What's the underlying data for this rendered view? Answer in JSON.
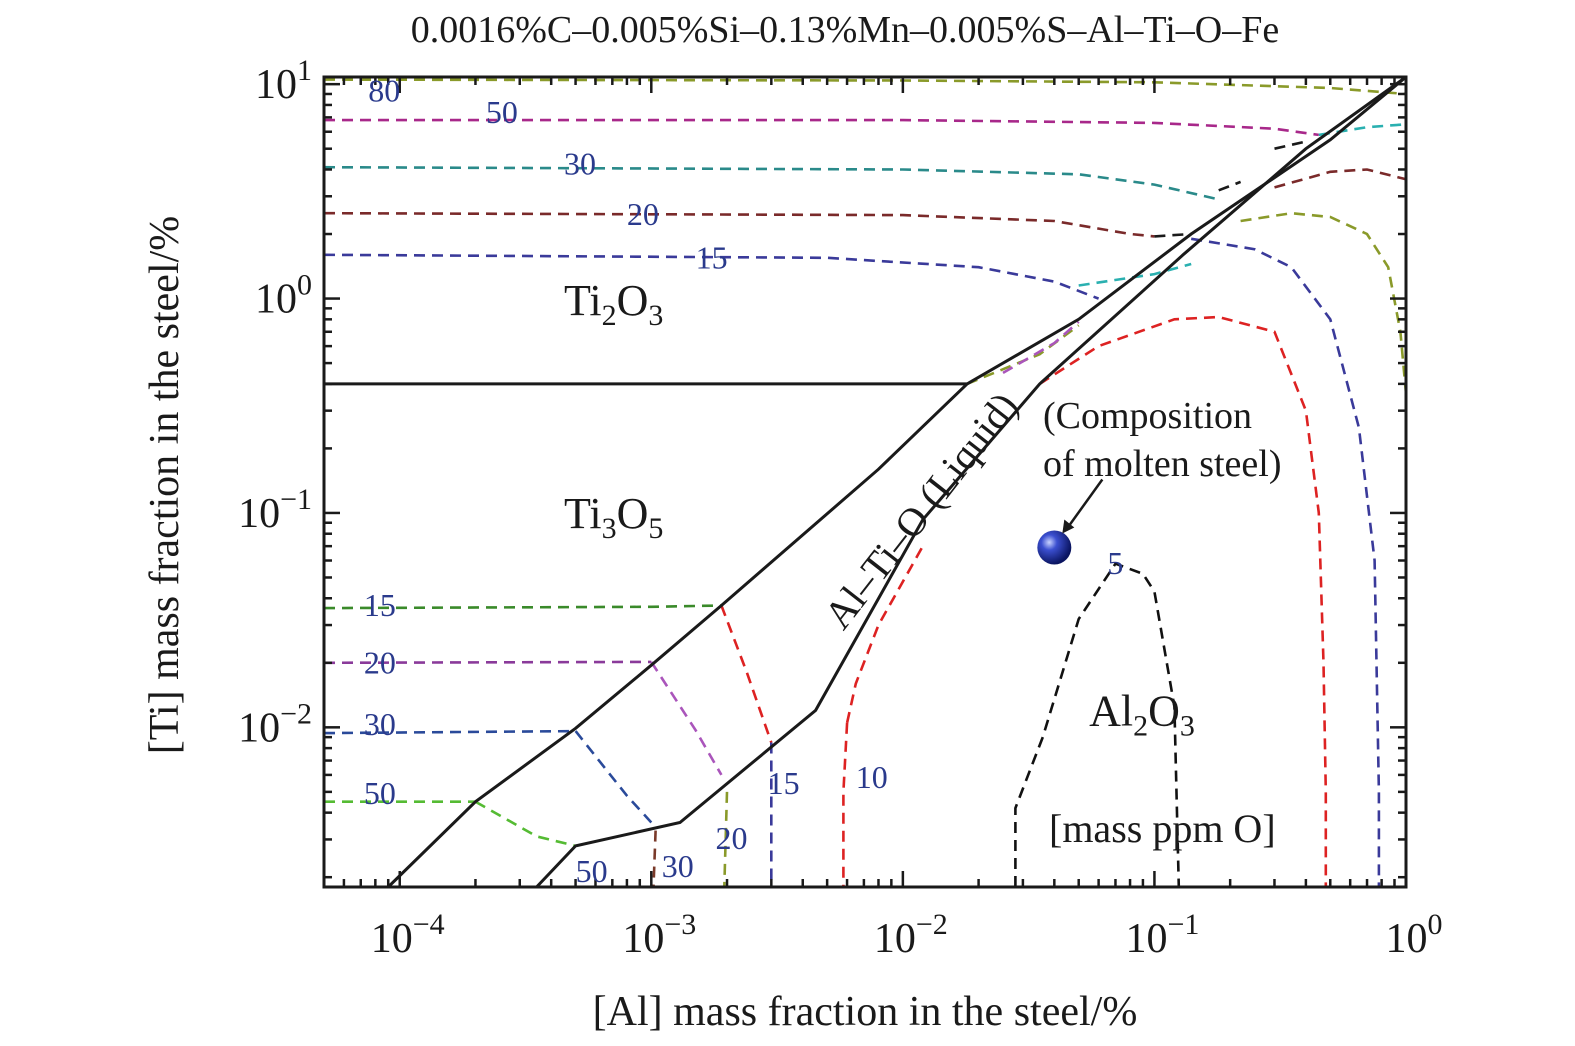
{
  "chart_data": {
    "type": "line",
    "title": "0.0016%C–0.005%Si–0.13%Mn–0.005%S–Al–Ti–O–Fe",
    "xlabel": "[Al] mass fraction in the steel/%",
    "ylabel": "[Ti] mass fraction in the steel/%",
    "xscale": "log",
    "yscale": "log",
    "xlim": [
      5e-05,
      1.0
    ],
    "ylim": [
      0.0018,
      10.8
    ],
    "x_ticks": [
      {
        "v": 0.0001,
        "base": "10",
        "exp": "−4"
      },
      {
        "v": 0.001,
        "base": "10",
        "exp": "−3"
      },
      {
        "v": 0.01,
        "base": "10",
        "exp": "−2"
      },
      {
        "v": 0.1,
        "base": "10",
        "exp": "−1"
      },
      {
        "v": 1.0,
        "base": "10",
        "exp": "0"
      }
    ],
    "y_ticks": [
      {
        "v": 0.01,
        "base": "10",
        "exp": "−2"
      },
      {
        "v": 0.1,
        "base": "10",
        "exp": "−1"
      },
      {
        "v": 1.0,
        "base": "10",
        "exp": "0"
      },
      {
        "v": 10.0,
        "base": "10",
        "exp": "1"
      }
    ],
    "phase_regions": [
      {
        "main": "Ti",
        "sub1": "2",
        "mid": "O",
        "sub2": "3",
        "x": 0.00045,
        "y": 0.84
      },
      {
        "main": "Ti",
        "sub1": "3",
        "mid": "O",
        "sub2": "5",
        "x": 0.00045,
        "y": 0.085
      },
      {
        "main": "Al",
        "sub1": "2",
        "mid": "O",
        "sub2": "3",
        "x": 0.055,
        "y": 0.0102
      }
    ],
    "liquid_label": "Al–Ti–O (Liquid)",
    "unit_label": "[mass ppm O]",
    "composition_point": {
      "x": 0.04,
      "y": 0.069,
      "color": "#2233aa"
    },
    "annotation": {
      "line1": "(Composition",
      "line2": "of molten steel)"
    },
    "phase_boundaries": [
      {
        "name": "liquid-upper",
        "points": [
          [
            9e-05,
            0.0018
          ],
          [
            0.0002,
            0.0045
          ],
          [
            0.0005,
            0.0099
          ],
          [
            0.001,
            0.0195
          ],
          [
            0.0019,
            0.037
          ],
          [
            0.008,
            0.16
          ],
          [
            0.018,
            0.4
          ],
          [
            0.05,
            0.8
          ],
          [
            0.14,
            2.0
          ],
          [
            0.5,
            5.5
          ],
          [
            1.0,
            10.8
          ]
        ]
      },
      {
        "name": "liquid-lower",
        "points": [
          [
            0.00035,
            0.0018
          ],
          [
            0.0005,
            0.0028
          ],
          [
            0.0013,
            0.0036
          ],
          [
            0.0045,
            0.012
          ],
          [
            0.012,
            0.093
          ],
          [
            0.035,
            0.4
          ],
          [
            0.13,
            1.6
          ],
          [
            0.4,
            5.0
          ],
          [
            1.0,
            10.8
          ]
        ]
      },
      {
        "name": "Ti2O3-Ti3O5",
        "points": [
          [
            5e-05,
            0.4
          ],
          [
            0.018,
            0.4
          ]
        ]
      }
    ],
    "series": [
      {
        "name": "80",
        "color": "#8a9a2a",
        "points": [
          [
            5e-05,
            10.5
          ],
          [
            0.01,
            10.4
          ],
          [
            0.1,
            10.2
          ],
          [
            0.5,
            9.6
          ],
          [
            1.0,
            9.0
          ]
        ]
      },
      {
        "name": "50",
        "color": "#a8288a",
        "points": [
          [
            5e-05,
            6.8
          ],
          [
            0.01,
            6.8
          ],
          [
            0.1,
            6.6
          ],
          [
            0.3,
            6.2
          ],
          [
            0.45,
            5.8
          ]
        ]
      },
      {
        "name": "30",
        "color": "#2a8a8a",
        "points": [
          [
            5e-05,
            4.1
          ],
          [
            0.01,
            4.0
          ],
          [
            0.05,
            3.8
          ],
          [
            0.1,
            3.4
          ],
          [
            0.18,
            2.9
          ]
        ]
      },
      {
        "name": "20",
        "color": "#7a2a2a",
        "points": [
          [
            5e-05,
            2.5
          ],
          [
            0.01,
            2.45
          ],
          [
            0.04,
            2.3
          ],
          [
            0.08,
            2.0
          ],
          [
            0.1,
            1.95
          ]
        ]
      },
      {
        "name": "15",
        "color": "#3a3a9a",
        "points": [
          [
            5e-05,
            1.6
          ],
          [
            0.005,
            1.55
          ],
          [
            0.02,
            1.4
          ],
          [
            0.04,
            1.2
          ],
          [
            0.06,
            1.0
          ]
        ]
      },
      {
        "name": "15",
        "color": "#3a8a2a",
        "points": [
          [
            5e-05,
            0.036
          ],
          [
            0.001,
            0.0365
          ],
          [
            0.0019,
            0.037
          ]
        ]
      },
      {
        "name": "15",
        "color": "#dd2222",
        "points": [
          [
            0.0019,
            0.037
          ],
          [
            0.0024,
            0.018
          ],
          [
            0.003,
            0.0085
          ]
        ]
      },
      {
        "name": "20",
        "color": "#8a3a9a",
        "points": [
          [
            5e-05,
            0.02
          ],
          [
            0.001,
            0.0202
          ]
        ]
      },
      {
        "name": "20",
        "color": "#aa55bb",
        "points": [
          [
            0.001,
            0.0202
          ],
          [
            0.0015,
            0.0097
          ],
          [
            0.0019,
            0.006
          ]
        ]
      },
      {
        "name": "30",
        "color": "#2a4a9a",
        "points": [
          [
            5e-05,
            0.0094
          ],
          [
            0.0005,
            0.0096
          ]
        ]
      },
      {
        "name": "30",
        "color": "#2a4a9a",
        "points": [
          [
            0.0005,
            0.0096
          ],
          [
            0.0008,
            0.0048
          ],
          [
            0.001,
            0.0036
          ]
        ]
      },
      {
        "name": "50",
        "color": "#55bb33",
        "points": [
          [
            5e-05,
            0.0045
          ],
          [
            0.0002,
            0.0045
          ]
        ]
      },
      {
        "name": "50",
        "color": "#55bb33",
        "points": [
          [
            0.0002,
            0.0045
          ],
          [
            0.00035,
            0.0031
          ],
          [
            0.0005,
            0.0028
          ]
        ]
      },
      {
        "name": "30",
        "color": "#7a3a2a",
        "points": [
          [
            0.00104,
            0.0033
          ],
          [
            0.00102,
            0.0018
          ]
        ]
      },
      {
        "name": "20",
        "color": "#8a9a2a",
        "points": [
          [
            0.002,
            0.005
          ],
          [
            0.00195,
            0.0018
          ]
        ]
      },
      {
        "name": "15",
        "color": "#3a3a9a",
        "points": [
          [
            0.003,
            0.0085
          ],
          [
            0.003,
            0.005
          ],
          [
            0.003,
            0.0018
          ]
        ]
      },
      {
        "name": "10",
        "color": "#dd2222",
        "points": [
          [
            0.006,
            0.0105
          ],
          [
            0.0065,
            0.016
          ],
          [
            0.008,
            0.03
          ],
          [
            0.012,
            0.07
          ]
        ]
      },
      {
        "name": "10",
        "color": "#dd2222",
        "points": [
          [
            0.006,
            0.0105
          ],
          [
            0.0058,
            0.005
          ],
          [
            0.0058,
            0.0018
          ]
        ]
      },
      {
        "name": "5",
        "color": "#111111",
        "points": [
          [
            0.028,
            0.0018
          ],
          [
            0.028,
            0.0042
          ],
          [
            0.036,
            0.009
          ],
          [
            0.05,
            0.032
          ],
          [
            0.07,
            0.058
          ],
          [
            0.09,
            0.052
          ],
          [
            0.1,
            0.043
          ],
          [
            0.12,
            0.0125
          ],
          [
            0.125,
            0.0018
          ]
        ]
      },
      {
        "name": "",
        "color": "#dd2222",
        "points": [
          [
            0.035,
            0.4
          ],
          [
            0.06,
            0.6
          ],
          [
            0.12,
            0.8
          ],
          [
            0.18,
            0.82
          ],
          [
            0.3,
            0.7
          ],
          [
            0.4,
            0.3
          ],
          [
            0.45,
            0.1
          ],
          [
            0.47,
            0.02
          ],
          [
            0.48,
            0.005
          ],
          [
            0.48,
            0.0018
          ]
        ]
      },
      {
        "name": "",
        "color": "#3a3a9a",
        "points": [
          [
            0.14,
            1.9
          ],
          [
            0.25,
            1.7
          ],
          [
            0.35,
            1.4
          ],
          [
            0.5,
            0.8
          ],
          [
            0.65,
            0.25
          ],
          [
            0.75,
            0.06
          ],
          [
            0.78,
            0.005
          ],
          [
            0.78,
            0.0018
          ]
        ]
      },
      {
        "name": "",
        "color": "#8a9a2a",
        "points": [
          [
            0.22,
            2.3
          ],
          [
            0.35,
            2.5
          ],
          [
            0.5,
            2.4
          ],
          [
            0.7,
            2.0
          ],
          [
            0.85,
            1.4
          ],
          [
            0.95,
            0.7
          ],
          [
            1.0,
            0.36
          ]
        ]
      },
      {
        "name": "",
        "color": "#7a2a2a",
        "points": [
          [
            0.3,
            3.3
          ],
          [
            0.5,
            3.9
          ],
          [
            0.7,
            4.0
          ],
          [
            1.0,
            3.6
          ]
        ]
      },
      {
        "name": "",
        "color": "#2ab0b0",
        "points": [
          [
            0.05,
            1.15
          ],
          [
            0.1,
            1.3
          ],
          [
            0.14,
            1.45
          ]
        ]
      },
      {
        "name": "",
        "color": "#2ab0b0",
        "points": [
          [
            0.45,
            5.8
          ],
          [
            0.7,
            6.3
          ],
          [
            1.0,
            6.5
          ]
        ]
      },
      {
        "name": "",
        "color": "#1a1a1a",
        "points": [
          [
            0.1,
            1.95
          ],
          [
            0.14,
            2.0
          ]
        ]
      },
      {
        "name": "",
        "color": "#1a1a1a",
        "points": [
          [
            0.18,
            3.2
          ],
          [
            0.22,
            3.5
          ]
        ]
      },
      {
        "name": "",
        "color": "#1a1a1a",
        "points": [
          [
            0.3,
            5.0
          ],
          [
            0.4,
            5.4
          ]
        ]
      },
      {
        "name": "",
        "color": "#8a9a2a",
        "points": [
          [
            0.018,
            0.4
          ],
          [
            0.035,
            0.55
          ],
          [
            0.05,
            0.75
          ]
        ]
      },
      {
        "name": "",
        "color": "#aa55bb",
        "points": [
          [
            0.025,
            0.45
          ],
          [
            0.04,
            0.62
          ],
          [
            0.05,
            0.78
          ]
        ]
      }
    ],
    "contour_labels": [
      {
        "text": "80",
        "x": 7.5e-05,
        "y": 8.3
      },
      {
        "text": "50",
        "x": 0.00022,
        "y": 6.6
      },
      {
        "text": "30",
        "x": 0.00045,
        "y": 3.8
      },
      {
        "text": "20",
        "x": 0.0008,
        "y": 2.2
      },
      {
        "text": "15",
        "x": 0.0015,
        "y": 1.38
      },
      {
        "text": "15",
        "x": 7.2e-05,
        "y": 0.033
      },
      {
        "text": "20",
        "x": 7.2e-05,
        "y": 0.0178
      },
      {
        "text": "30",
        "x": 7.2e-05,
        "y": 0.0092
      },
      {
        "text": "50",
        "x": 7.2e-05,
        "y": 0.0044
      },
      {
        "text": "50",
        "x": 0.0005,
        "y": 0.0019
      },
      {
        "text": "30",
        "x": 0.0011,
        "y": 0.002
      },
      {
        "text": "20",
        "x": 0.0018,
        "y": 0.0027
      },
      {
        "text": "15",
        "x": 0.0029,
        "y": 0.0049
      },
      {
        "text": "10",
        "x": 0.0065,
        "y": 0.0052
      },
      {
        "text": "5",
        "x": 0.065,
        "y": 0.052
      }
    ]
  }
}
